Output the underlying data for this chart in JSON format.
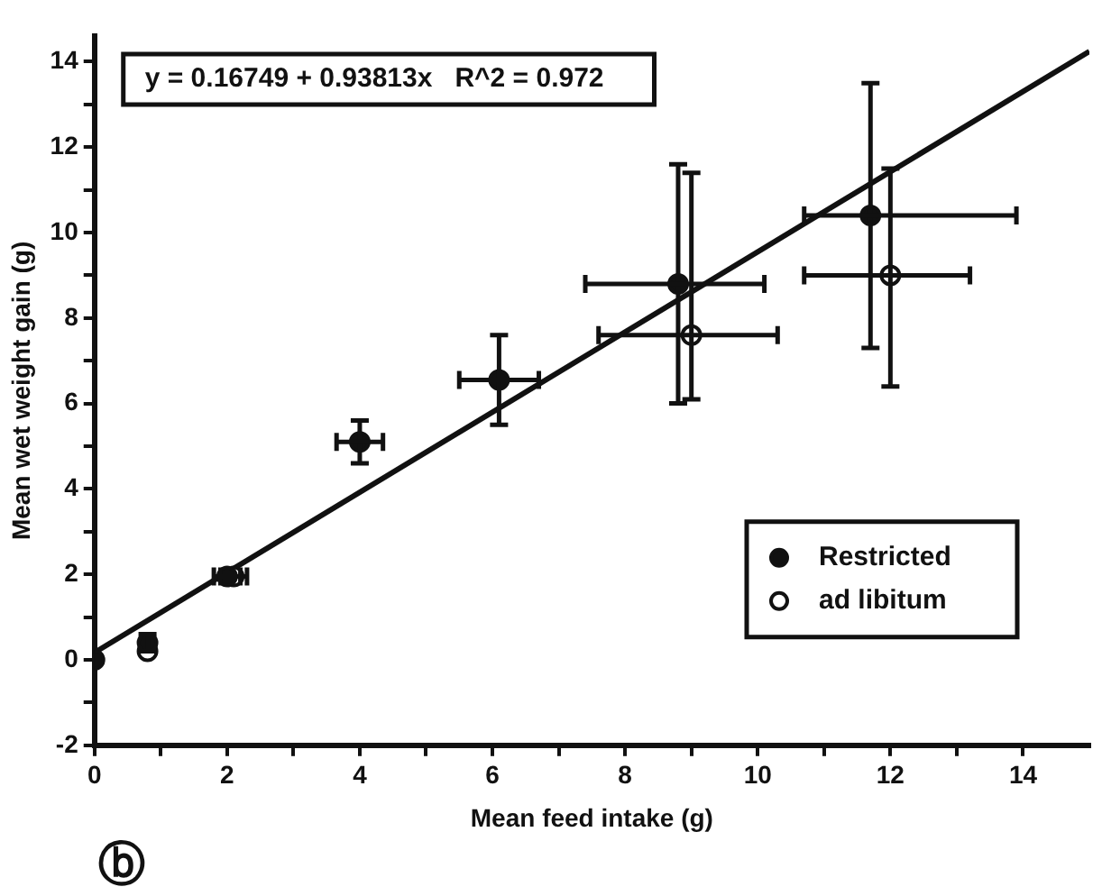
{
  "chart_data": {
    "type": "scatter",
    "xlabel": "Mean feed intake (g)",
    "ylabel": "Mean wet weight gain (g)",
    "annotations": [
      "y = 0.16749 + 0.93813x   R^2 = 0.972",
      "ⓑ"
    ],
    "series": [
      {
        "name": "Restricted",
        "color": "#111111",
        "marker": "circle",
        "x": [
          0,
          0.8,
          2,
          4,
          6.1,
          8.8,
          11.7
        ],
        "values": [
          0,
          0.4,
          1.95,
          5.1,
          6.55,
          8.8,
          10.4
        ],
        "errors": [
          null,
          [
            0.2,
            0.6
          ],
          null,
          [
            4.6,
            5.6
          ],
          [
            5.5,
            7.6
          ],
          [
            6.0,
            11.6
          ],
          [
            7.3,
            13.5
          ]
        ],
        "xerrors": [
          null,
          null,
          [
            1.8,
            2.2
          ],
          [
            3.65,
            4.35
          ],
          [
            5.5,
            6.7
          ],
          [
            7.4,
            10.1
          ],
          [
            10.7,
            13.9
          ]
        ]
      },
      {
        "name": "ad libitum",
        "color": "#111111",
        "marker": "circle",
        "x": [
          0.8,
          2.1,
          9,
          12
        ],
        "values": [
          0.2,
          1.95,
          7.6,
          9.0
        ],
        "errors": [
          null,
          null,
          [
            6.1,
            11.4
          ],
          [
            6.4,
            11.5
          ]
        ],
        "xerrors": [
          null,
          [
            1.9,
            2.3
          ],
          [
            7.6,
            10.3
          ],
          [
            10.7,
            13.2
          ]
        ]
      },
      {
        "type": "line",
        "color": "#111111",
        "marker": "none",
        "x": [
          0,
          15
        ],
        "values": [
          0.17,
          14.24
        ]
      }
    ],
    "xlim": [
      0,
      15
    ],
    "ylim": [
      -2,
      14.6
    ],
    "xticks": [
      0,
      {
        "value": 1,
        "label": null
      },
      2,
      {
        "value": 3,
        "label": null
      },
      4,
      {
        "value": 5,
        "label": null
      },
      6,
      {
        "value": 7,
        "label": null
      },
      8,
      {
        "value": 9,
        "label": null
      },
      10,
      {
        "value": 11,
        "label": null
      },
      12,
      {
        "value": 13,
        "label": null
      },
      14
    ],
    "yticks": [
      -2,
      {
        "value": -1,
        "label": null
      },
      0,
      {
        "value": 1,
        "label": null
      },
      2,
      {
        "value": 3,
        "label": null
      },
      4,
      {
        "value": 5,
        "label": null
      },
      6,
      {
        "value": 7,
        "label": null
      },
      8,
      {
        "value": 9,
        "label": null
      },
      10,
      {
        "value": 11,
        "label": null
      },
      12,
      {
        "value": 13,
        "label": null
      },
      14
    ],
    "grid": false,
    "legend": "bottom right"
  }
}
